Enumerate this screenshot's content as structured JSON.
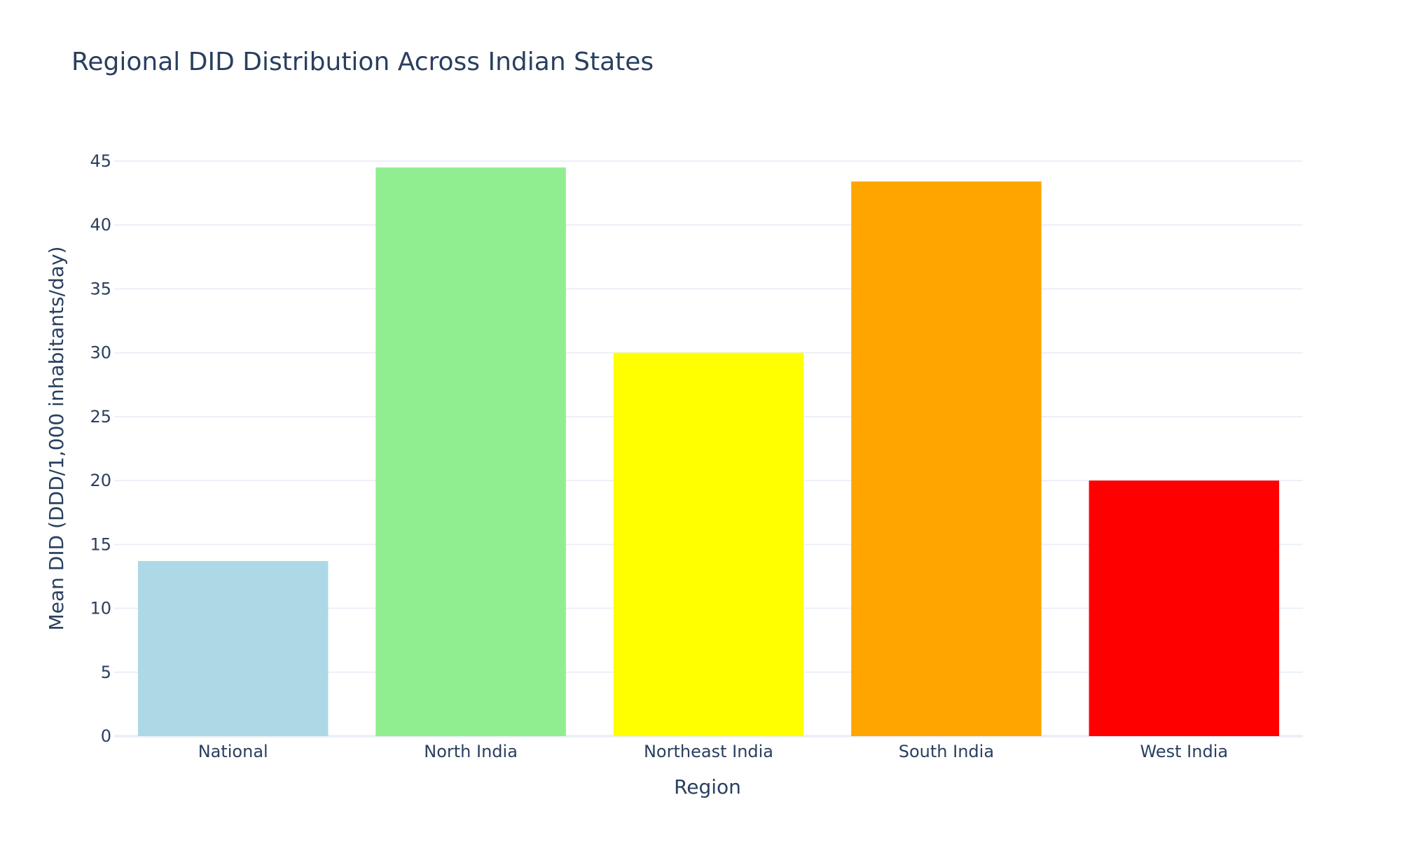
{
  "chart_data": {
    "type": "bar",
    "title": "Regional DID Distribution Across Indian States",
    "xlabel": "Region",
    "ylabel": "Mean DID (DDD/1,000 inhabitants/day)",
    "categories": [
      "National",
      "North India",
      "Northeast India",
      "South India",
      "West India"
    ],
    "values": [
      13.7,
      44.5,
      30.0,
      43.4,
      20.0
    ],
    "colors": [
      "#add8e6",
      "#90ee90",
      "#ffff00",
      "#ffa500",
      "#ff0000"
    ],
    "ylim": [
      0,
      47.3
    ],
    "yticks": [
      0,
      5,
      10,
      15,
      20,
      25,
      30,
      35,
      40,
      45
    ],
    "grid": true,
    "legend": "none"
  }
}
